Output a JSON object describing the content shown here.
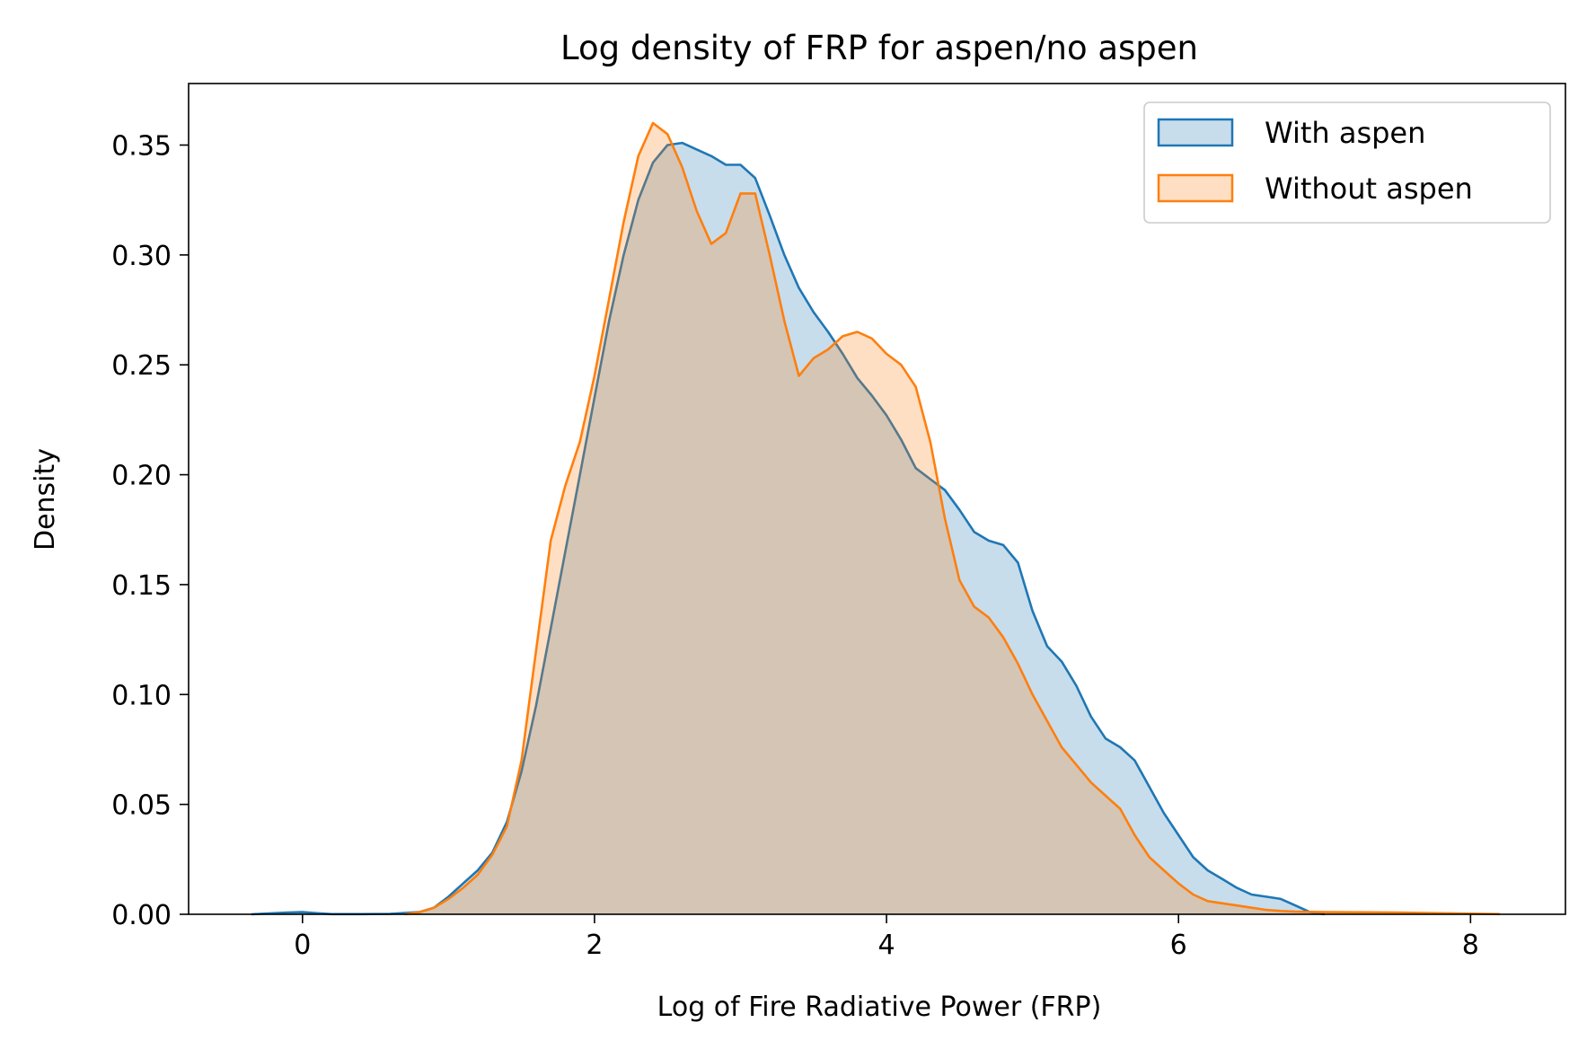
{
  "chart_data": {
    "type": "area",
    "title": "Log density of FRP for aspen/no aspen",
    "xlabel": "Log of Fire Radiative Power (FRP)",
    "ylabel": "Density",
    "xlim": [
      -0.78,
      8.65
    ],
    "ylim": [
      0,
      0.378
    ],
    "xticks": [
      0,
      2,
      4,
      6,
      8
    ],
    "xtick_labels": [
      "0",
      "2",
      "4",
      "6",
      "8"
    ],
    "yticks": [
      0,
      0.05,
      0.1,
      0.15,
      0.2,
      0.25,
      0.3,
      0.35
    ],
    "ytick_labels": [
      "0.00",
      "0.05",
      "0.10",
      "0.15",
      "0.20",
      "0.25",
      "0.30",
      "0.35"
    ],
    "grid": false,
    "legend_position": "top-right",
    "series": [
      {
        "name": "With aspen",
        "color": "#1f77b4",
        "x": [
          -0.35,
          -0.2,
          -0.1,
          0.0,
          0.1,
          0.2,
          0.4,
          0.6,
          0.8,
          0.9,
          1.0,
          1.1,
          1.2,
          1.3,
          1.4,
          1.5,
          1.6,
          1.7,
          1.8,
          1.9,
          2.0,
          2.1,
          2.2,
          2.3,
          2.4,
          2.5,
          2.6,
          2.7,
          2.8,
          2.9,
          3.0,
          3.1,
          3.2,
          3.3,
          3.4,
          3.5,
          3.6,
          3.7,
          3.8,
          3.9,
          4.0,
          4.1,
          4.2,
          4.3,
          4.4,
          4.5,
          4.6,
          4.7,
          4.8,
          4.9,
          5.0,
          5.1,
          5.2,
          5.3,
          5.4,
          5.5,
          5.6,
          5.7,
          5.8,
          5.9,
          6.0,
          6.1,
          6.2,
          6.3,
          6.4,
          6.5,
          6.6,
          6.7,
          6.8,
          6.9,
          7.0
        ],
        "y": [
          0.0,
          0.0005,
          0.0008,
          0.001,
          0.0005,
          0.0001,
          0.0001,
          0.0002,
          0.001,
          0.003,
          0.008,
          0.014,
          0.02,
          0.028,
          0.042,
          0.065,
          0.095,
          0.13,
          0.165,
          0.2,
          0.235,
          0.27,
          0.3,
          0.325,
          0.342,
          0.35,
          0.351,
          0.348,
          0.345,
          0.341,
          0.341,
          0.335,
          0.318,
          0.3,
          0.285,
          0.274,
          0.265,
          0.255,
          0.244,
          0.236,
          0.227,
          0.216,
          0.203,
          0.198,
          0.193,
          0.184,
          0.174,
          0.17,
          0.168,
          0.16,
          0.138,
          0.122,
          0.115,
          0.104,
          0.09,
          0.08,
          0.076,
          0.07,
          0.058,
          0.046,
          0.036,
          0.026,
          0.02,
          0.016,
          0.012,
          0.009,
          0.008,
          0.007,
          0.004,
          0.001,
          0.0
        ]
      },
      {
        "name": "Without aspen",
        "color": "#ff7f0e",
        "x": [
          0.7,
          0.8,
          0.9,
          1.0,
          1.1,
          1.2,
          1.3,
          1.4,
          1.5,
          1.6,
          1.7,
          1.8,
          1.9,
          2.0,
          2.1,
          2.2,
          2.3,
          2.4,
          2.5,
          2.6,
          2.7,
          2.8,
          2.9,
          3.0,
          3.1,
          3.2,
          3.3,
          3.4,
          3.5,
          3.6,
          3.7,
          3.8,
          3.9,
          4.0,
          4.1,
          4.2,
          4.3,
          4.4,
          4.5,
          4.6,
          4.7,
          4.8,
          4.9,
          5.0,
          5.1,
          5.2,
          5.3,
          5.4,
          5.5,
          5.6,
          5.7,
          5.8,
          5.9,
          6.0,
          6.1,
          6.2,
          6.3,
          6.4,
          6.5,
          6.6,
          6.7,
          6.8,
          7.0,
          7.5,
          8.0,
          8.2
        ],
        "y": [
          0.0,
          0.001,
          0.003,
          0.007,
          0.012,
          0.018,
          0.027,
          0.04,
          0.07,
          0.12,
          0.17,
          0.195,
          0.215,
          0.245,
          0.28,
          0.315,
          0.345,
          0.36,
          0.355,
          0.34,
          0.32,
          0.305,
          0.31,
          0.328,
          0.328,
          0.3,
          0.27,
          0.245,
          0.253,
          0.257,
          0.263,
          0.265,
          0.262,
          0.255,
          0.25,
          0.24,
          0.215,
          0.18,
          0.152,
          0.14,
          0.135,
          0.126,
          0.114,
          0.1,
          0.088,
          0.076,
          0.068,
          0.06,
          0.054,
          0.048,
          0.036,
          0.026,
          0.02,
          0.014,
          0.009,
          0.006,
          0.005,
          0.004,
          0.003,
          0.002,
          0.0015,
          0.0012,
          0.001,
          0.0008,
          0.0003,
          0.0001
        ]
      }
    ]
  }
}
